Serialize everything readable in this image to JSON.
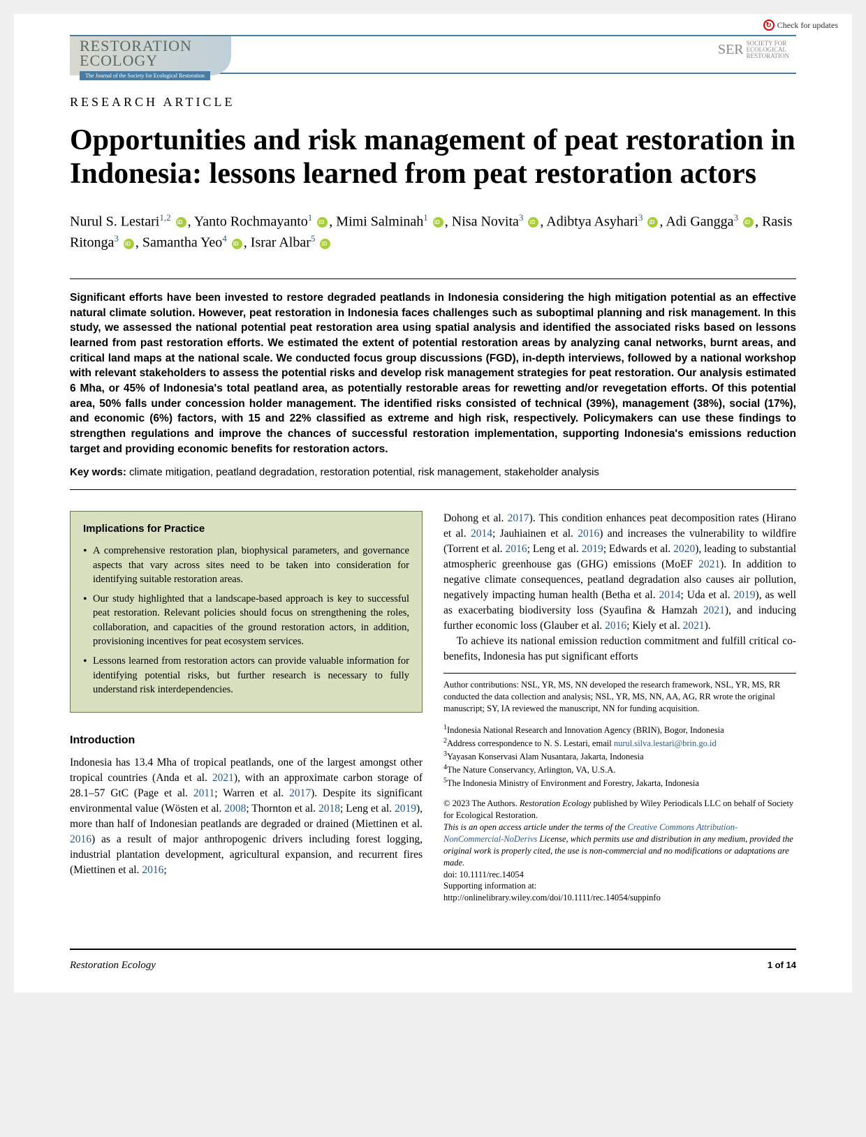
{
  "header": {
    "check_updates": "Check for updates",
    "journal_name_1": "RESTORATION",
    "journal_name_2": "ECOLOGY",
    "journal_sub": "The Journal of the Society for Ecological Restoration",
    "ser_main": "SER",
    "ser_sub1": "SOCIETY FOR",
    "ser_sub2": "ECOLOGICAL",
    "ser_sub3": "RESTORATION"
  },
  "article_type": "RESEARCH ARTICLE",
  "title": "Opportunities and risk management of peat restoration in Indonesia: lessons learned from peat restoration actors",
  "authors": {
    "a1_name": "Nurul S. Lestari",
    "a1_aff": "1,2",
    "a2_name": "Yanto Rochmayanto",
    "a2_aff": "1",
    "a3_name": "Mimi Salminah",
    "a3_aff": "1",
    "a4_name": "Nisa Novita",
    "a4_aff": "3",
    "a5_name": "Adibtya Asyhari",
    "a5_aff": "3",
    "a6_name": "Adi Gangga",
    "a6_aff": "3",
    "a7_name": "Rasis Ritonga",
    "a7_aff": "3",
    "a8_name": "Samantha Yeo",
    "a8_aff": "4",
    "a9_name": "Israr Albar",
    "a9_aff": "5"
  },
  "abstract": "Significant efforts have been invested to restore degraded peatlands in Indonesia considering the high mitigation potential as an effective natural climate solution. However, peat restoration in Indonesia faces challenges such as suboptimal planning and risk management. In this study, we assessed the national potential peat restoration area using spatial analysis and identified the associated risks based on lessons learned from past restoration efforts. We estimated the extent of potential restoration areas by analyzing canal networks, burnt areas, and critical land maps at the national scale. We conducted focus group discussions (FGD), in-depth interviews, followed by a national workshop with relevant stakeholders to assess the potential risks and develop risk management strategies for peat restoration. Our analysis estimated 6 Mha, or 45% of Indonesia's total peatland area, as potentially restorable areas for rewetting and/or revegetation efforts. Of this potential area, 50% falls under concession holder management. The identified risks consisted of technical (39%), management (38%), social (17%), and economic (6%) factors, with 15 and 22% classified as extreme and high risk, respectively. Policymakers can use these findings to strengthen regulations and improve the chances of successful restoration implementation, supporting Indonesia's emissions reduction target and providing economic benefits for restoration actors.",
  "keywords_label": "Key words:",
  "keywords": "climate mitigation, peatland degradation, restoration potential, risk management, stakeholder analysis",
  "implications": {
    "heading": "Implications for Practice",
    "b1": "A comprehensive restoration plan, biophysical parameters, and governance aspects that vary across sites need to be taken into consideration for identifying suitable restoration areas.",
    "b2": "Our study highlighted that a landscape-based approach is key to successful peat restoration. Relevant policies should focus on strengthening the roles, collaboration, and capacities of the ground restoration actors, in addition, provisioning incentives for peat ecosystem services.",
    "b3": "Lessons learned from restoration actors can provide valuable information for identifying potential risks, but further research is necessary to fully understand risk interdependencies."
  },
  "intro_heading": "Introduction",
  "intro_p1a": "Indonesia has 13.4 Mha of tropical peatlands, one of the largest amongst other tropical countries (Anda et al. ",
  "intro_y1": "2021",
  "intro_p1b": "), with an approximate carbon storage of 28.1–57 GtC (Page et al. ",
  "intro_y2": "2011",
  "intro_p1c": "; Warren et al. ",
  "intro_y3": "2017",
  "intro_p1d": "). Despite its significant environmental value (Wösten et al. ",
  "intro_y4": "2008",
  "intro_p1e": "; Thornton et al. ",
  "intro_y5": "2018",
  "intro_p1f": "; Leng et al. ",
  "intro_y6": "2019",
  "intro_p1g": "), more than half of Indonesian peatlands are degraded or drained (Miettinen et al. ",
  "intro_y7": "2016",
  "intro_p1h": ") as a result of major anthropogenic drivers including forest logging, industrial plantation development, agricultural expansion, and recurrent fires (Miettinen et al. ",
  "intro_y8": "2016",
  "intro_p1i": "; ",
  "col2_p1a": "Dohong et al. ",
  "col2_y1": "2017",
  "col2_p1b": "). This condition enhances peat decomposition rates (Hirano et al. ",
  "col2_y2": "2014",
  "col2_p1c": "; Jauhiainen et al. ",
  "col2_y3": "2016",
  "col2_p1d": ") and increases the vulnerability to wildfire (Torrent et al. ",
  "col2_y4": "2016",
  "col2_p1e": "; Leng et al. ",
  "col2_y5": "2019",
  "col2_p1f": "; Edwards et al. ",
  "col2_y6": "2020",
  "col2_p1g": "), leading to substantial atmospheric greenhouse gas (GHG) emissions (MoEF ",
  "col2_y7": "2021",
  "col2_p1h": "). In addition to negative climate consequences, peatland degradation also causes air pollution, negatively impacting human health (Betha et al. ",
  "col2_y8": "2014",
  "col2_p1i": "; Uda et al. ",
  "col2_y9": "2019",
  "col2_p1j": "), as well as exacerbating biodiversity loss (Syaufina & Hamzah ",
  "col2_y10": "2021",
  "col2_p1k": "), and inducing further economic loss (Glauber et al. ",
  "col2_y11": "2016",
  "col2_p1l": "; Kiely et al. ",
  "col2_y12": "2021",
  "col2_p1m": ").",
  "col2_p2": "To achieve its national emission reduction commitment and fulfill critical co-benefits, Indonesia has put significant efforts",
  "contributions": "Author contributions: NSL, YR, MS, NN developed the research framework, NSL, YR, MS, RR conducted the data collection and analysis; NSL, YR, MS, NN, AA, AG, RR wrote the original manuscript; SY, IA reviewed the manuscript, NN for funding acquisition.",
  "affiliations": {
    "a1": "Indonesia National Research and Innovation Agency (BRIN), Bogor, Indonesia",
    "a2a": "Address correspondence to N. S. Lestari, email ",
    "a2_email": "nurul.silva.lestari@brin.go.id",
    "a3": "Yayasan Konservasi Alam Nusantara, Jakarta, Indonesia",
    "a4": "The Nature Conservancy, Arlington, VA, U.S.A.",
    "a5": "The Indonesia Ministry of Environment and Forestry, Jakarta, Indonesia"
  },
  "copyright": {
    "line1a": "© 2023 The Authors. ",
    "line1b": "Restoration Ecology ",
    "line1c": "published by Wiley Periodicals LLC on behalf of Society for Ecological Restoration.",
    "line2a": "This is an open access article under the terms of the ",
    "line2_link": "Creative Commons Attribution-NonCommercial-NoDerivs",
    "line2b": " License, which permits use and distribution in any medium, provided the original work is properly cited, the use is non-commercial and no modifications or adaptations are made.",
    "doi": "doi: 10.1111/rec.14054",
    "supp_label": "Supporting information at:",
    "supp_url": "http://onlinelibrary.wiley.com/doi/10.1111/rec.14054/suppinfo"
  },
  "footer": {
    "journal": "Restoration Ecology",
    "page": "1 of 14"
  },
  "colors": {
    "link": "#2a5a8a",
    "box_bg": "#d9e0c0",
    "box_border": "#667750",
    "banner_blue": "#4a7ba0",
    "orcid": "#a6ce39"
  }
}
